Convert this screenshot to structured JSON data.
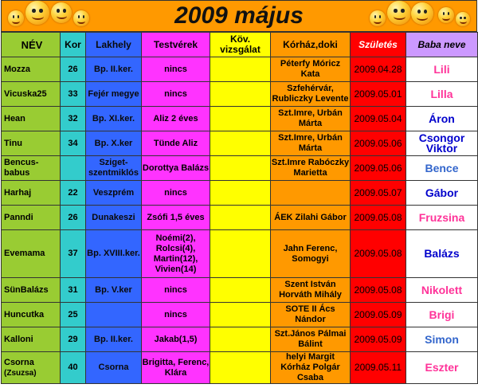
{
  "title": "2009 május",
  "headers": {
    "nev": "NÉV",
    "kor": "Kor",
    "lakhely": "Lakhely",
    "testverek": "Testvérek",
    "kov": "Köv. vizsgálat",
    "korhaz": "Kórház,doki",
    "szules": "Születés",
    "baba": "Baba neve"
  },
  "rows": [
    {
      "nev": "Mozza",
      "nev2": "",
      "kor": "26",
      "lakhely": "Bp. II.ker.",
      "testverek": "nincs",
      "kov": "",
      "korhaz": "Péterfy Móricz Kata",
      "szules": "2009.04.28",
      "baba": "Lili",
      "baba_color": "#ff3399"
    },
    {
      "nev": "Vicuska25",
      "nev2": "",
      "kor": "33",
      "lakhely": "Fejér megye",
      "testverek": "nincs",
      "kov": "",
      "korhaz": "Szfehérvár, Rubliczky Levente",
      "szules": "2009.05.01",
      "baba": "Lilla",
      "baba_color": "#ff3399"
    },
    {
      "nev": "Hean",
      "nev2": "",
      "kor": "32",
      "lakhely": "Bp. XI.ker.",
      "testverek": "Aliz 2 éves",
      "kov": "",
      "korhaz": "Szt.Imre, Urbán Márta",
      "szules": "2009.05.04",
      "baba": "Áron",
      "baba_color": "#0000cc"
    },
    {
      "nev": "Tinu",
      "nev2": "",
      "kor": "34",
      "lakhely": "Bp. X.ker",
      "testverek": "Tünde Aliz",
      "kov": "",
      "korhaz": "Szt.Imre, Urbán Márta",
      "szules": "2009.05.06",
      "baba": "Csongor Viktor",
      "baba_color": "#0000cc"
    },
    {
      "nev": "Bencus-babus",
      "nev2": "",
      "kor": "",
      "lakhely": "Sziget-szentmiklós",
      "testverek": "Dorottya Balázs",
      "kov": "",
      "korhaz": "Szt.Imre Rabóczky Marietta",
      "szules": "2009.05.06",
      "baba": "Bence",
      "baba_color": "#3366cc"
    },
    {
      "nev": "Harhaj",
      "nev2": "",
      "kor": "22",
      "lakhely": "Veszprém",
      "testverek": "nincs",
      "kov": "",
      "korhaz": "",
      "szules": "2009.05.07",
      "baba": "Gábor",
      "baba_color": "#0000cc"
    },
    {
      "nev": "Panndi",
      "nev2": "",
      "kor": "26",
      "lakhely": "Dunakeszi",
      "testverek": "Zsófi 1,5 éves",
      "kov": "",
      "korhaz": "ÁEK Zilahi Gábor",
      "szules": "2009.05.08",
      "baba": "Fruzsina",
      "baba_color": "#ff3399"
    },
    {
      "nev": "Evemama",
      "nev2": "",
      "kor": "37",
      "lakhely": "Bp. XVIII.ker.",
      "testverek": "Noémi(2), Rolcsi(4), Martin(12), Vivien(14)",
      "kov": "",
      "korhaz": "Jahn Ferenc, Somogyi",
      "szules": "2009.05.08",
      "baba": "Balázs",
      "baba_color": "#0000cc"
    },
    {
      "nev": "SünBalázs",
      "nev2": "",
      "kor": "31",
      "lakhely": "Bp. V.ker",
      "testverek": "nincs",
      "kov": "",
      "korhaz": "Szent István Horváth Mihály",
      "szules": "2009.05.08",
      "baba": "Nikolett",
      "baba_color": "#ff3399"
    },
    {
      "nev": "Huncutka",
      "nev2": "",
      "kor": "25",
      "lakhely": "",
      "testverek": "nincs",
      "kov": "",
      "korhaz": "SOTE II Ács Nándor",
      "szules": "2009.05.09",
      "baba": "Brigi",
      "baba_color": "#ff3399"
    },
    {
      "nev": "Kalloni",
      "nev2": "",
      "kor": "29",
      "lakhely": "Bp. II.ker.",
      "testverek": "Jakab(1,5)",
      "kov": "",
      "korhaz": "Szt.János Pálmai Bálint",
      "szules": "2009.05.09",
      "baba": "Simon",
      "baba_color": "#3366cc"
    },
    {
      "nev": "Csorna",
      "nev2": "(Zsuzsa)",
      "kor": "40",
      "lakhely": "Csorna",
      "testverek": "Brigitta, Ferenc, Klára",
      "kov": "",
      "korhaz": "helyi Margit Kórház Polgár Csaba",
      "szules": "2009.05.11",
      "baba": "Eszter",
      "baba_color": "#ff3399"
    }
  ]
}
